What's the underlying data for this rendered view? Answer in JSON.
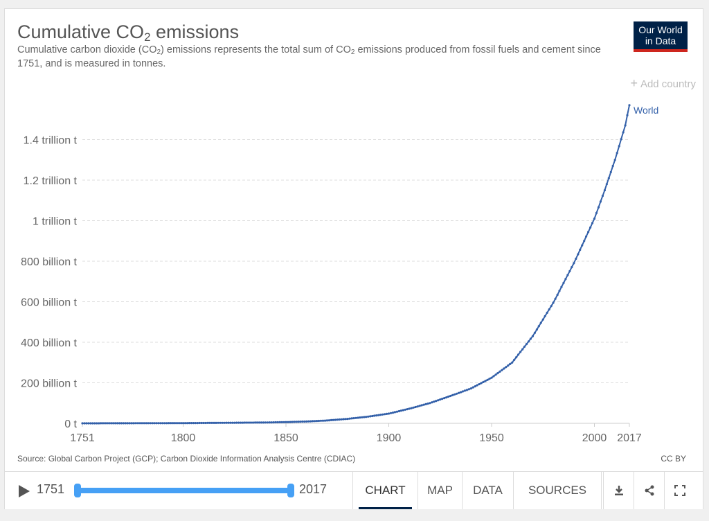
{
  "header": {
    "title_main": "Cumulative CO",
    "title_sub": "2",
    "title_tail": " emissions",
    "subtitle_a": "Cumulative carbon dioxide (CO",
    "subtitle_b": "2",
    "subtitle_c": ") emissions represents the total sum of CO",
    "subtitle_d": "2",
    "subtitle_e": " emissions produced from fossil fuels and cement since 1751, and is measured in tonnes.",
    "logo_line1": "Our World",
    "logo_line2": "in Data"
  },
  "add_country_label": "Add country",
  "footer": {
    "source": "Source: Global Carbon Project (GCP); Carbon Dioxide Information Analysis Centre (CDIAC)",
    "license": "CC BY"
  },
  "controls": {
    "start_year": "1751",
    "end_year": "2017",
    "tabs": [
      "CHART",
      "MAP",
      "DATA",
      "SOURCES"
    ],
    "active_tab": "CHART"
  },
  "colors": {
    "series": "#3360a9",
    "brand": "#002147",
    "brand_accent": "#ce261e",
    "slider": "#46a0f5"
  },
  "chart_data": {
    "type": "line",
    "title": "Cumulative CO2 emissions",
    "xlabel": "",
    "ylabel": "",
    "xlim": [
      1751,
      2017
    ],
    "ylim": [
      0,
      1600000000000
    ],
    "x_ticks": [
      1751,
      1800,
      1850,
      1900,
      1950,
      2000,
      2017
    ],
    "y_ticks": [
      {
        "value": 0,
        "label": "0 t"
      },
      {
        "value": 200000000000,
        "label": "200 billion t"
      },
      {
        "value": 400000000000,
        "label": "400 billion t"
      },
      {
        "value": 600000000000,
        "label": "600 billion t"
      },
      {
        "value": 800000000000,
        "label": "800 billion t"
      },
      {
        "value": 1000000000000,
        "label": "1 trillion t"
      },
      {
        "value": 1200000000000,
        "label": "1.2 trillion t"
      },
      {
        "value": 1400000000000,
        "label": "1.4 trillion t"
      }
    ],
    "grid": true,
    "series": [
      {
        "name": "World",
        "x": [
          1751,
          1800,
          1840,
          1850,
          1860,
          1870,
          1880,
          1890,
          1900,
          1910,
          1920,
          1930,
          1940,
          1950,
          1960,
          1970,
          1980,
          1990,
          2000,
          2005,
          2010,
          2015,
          2017
        ],
        "y": [
          0,
          1000000000,
          4000000000,
          6000000000,
          9000000000,
          14000000000,
          22000000000,
          33000000000,
          48000000000,
          72000000000,
          100000000000,
          135000000000,
          172000000000,
          225000000000,
          300000000000,
          430000000000,
          595000000000,
          790000000000,
          1010000000000,
          1150000000000,
          1300000000000,
          1470000000000,
          1570000000000
        ]
      }
    ]
  }
}
